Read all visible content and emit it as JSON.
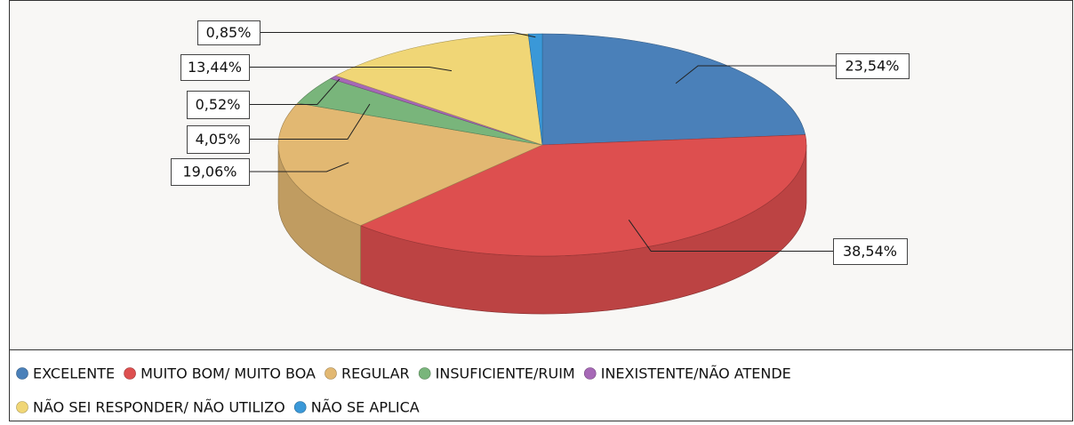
{
  "chart_data": {
    "type": "pie3d",
    "categories": [
      "EXCELENTE",
      "MUITO BOM/ MUITO BOA",
      "REGULAR",
      "INSUFICIENTE/RUIM",
      "INEXISTENTE/NÃO ATENDE",
      "NÃO SEI RESPONDER/ NÃO UTILIZO",
      "NÃO SE APLICA"
    ],
    "values": [
      23.54,
      38.54,
      19.06,
      4.05,
      0.52,
      13.44,
      0.85
    ],
    "value_labels": [
      "23,54%",
      "38,54%",
      "19,06%",
      "4,05%",
      "0,52%",
      "13,44%",
      "0,85%"
    ],
    "colors": [
      "#4a80b9",
      "#dd4f4f",
      "#e2b872",
      "#79b57b",
      "#a668b6",
      "#f0d676",
      "#3a98d8"
    ]
  }
}
